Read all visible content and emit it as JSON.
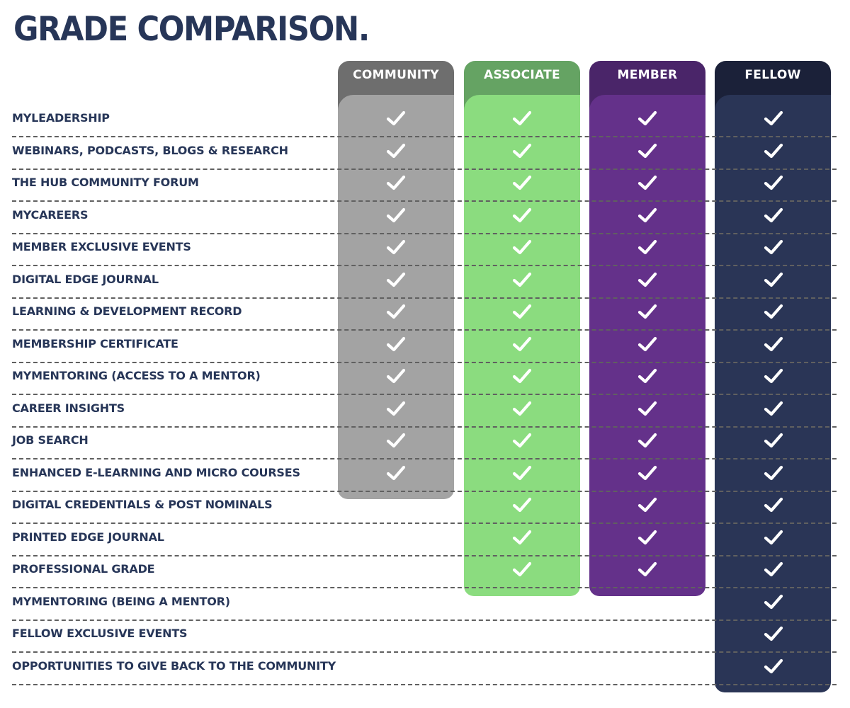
{
  "title": "GRADE COMPARISON.",
  "grades": [
    {
      "key": "community",
      "label": "COMMUNITY",
      "tab_color": "#6e6e6e",
      "body_color": "#a3a3a3",
      "feature_count": 12
    },
    {
      "key": "associate",
      "label": "ASSOCIATE",
      "tab_color": "#65a363",
      "body_color": "#8bdc7f",
      "feature_count": 15
    },
    {
      "key": "member",
      "label": "MEMBER",
      "tab_color": "#4a2569",
      "body_color": "#64318a",
      "feature_count": 15
    },
    {
      "key": "fellow",
      "label": "FELLOW",
      "tab_color": "#1b2139",
      "body_color": "#2a3556",
      "feature_count": 18
    }
  ],
  "check_icon": "checkmark-icon",
  "features": [
    {
      "label": "MYLEADERSHIP",
      "included": [
        true,
        true,
        true,
        true
      ]
    },
    {
      "label": "WEBINARS, PODCASTS, BLOGS & RESEARCH",
      "included": [
        true,
        true,
        true,
        true
      ]
    },
    {
      "label": "THE HUB COMMUNITY FORUM",
      "included": [
        true,
        true,
        true,
        true
      ]
    },
    {
      "label": "MYCAREERS",
      "included": [
        true,
        true,
        true,
        true
      ]
    },
    {
      "label": "MEMBER EXCLUSIVE EVENTS",
      "included": [
        true,
        true,
        true,
        true
      ]
    },
    {
      "label": "DIGITAL EDGE JOURNAL",
      "included": [
        true,
        true,
        true,
        true
      ]
    },
    {
      "label": "LEARNING & DEVELOPMENT RECORD",
      "included": [
        true,
        true,
        true,
        true
      ]
    },
    {
      "label": "MEMBERSHIP CERTIFICATE",
      "included": [
        true,
        true,
        true,
        true
      ]
    },
    {
      "label": "MYMENTORING (ACCESS TO A MENTOR)",
      "included": [
        true,
        true,
        true,
        true
      ]
    },
    {
      "label": "CAREER INSIGHTS",
      "included": [
        true,
        true,
        true,
        true
      ]
    },
    {
      "label": "JOB SEARCH",
      "included": [
        true,
        true,
        true,
        true
      ]
    },
    {
      "label": "ENHANCED E-LEARNING AND MICRO COURSES",
      "included": [
        true,
        true,
        true,
        true
      ]
    },
    {
      "label": "DIGITAL CREDENTIALS & POST NOMINALS",
      "included": [
        false,
        true,
        true,
        true
      ]
    },
    {
      "label": "PRINTED EDGE JOURNAL",
      "included": [
        false,
        true,
        true,
        true
      ]
    },
    {
      "label": "PROFESSIONAL GRADE",
      "included": [
        false,
        true,
        true,
        true
      ]
    },
    {
      "label": "MYMENTORING (BEING A MENTOR)",
      "included": [
        false,
        false,
        false,
        true
      ]
    },
    {
      "label": "FELLOW EXCLUSIVE EVENTS",
      "included": [
        false,
        false,
        false,
        true
      ]
    },
    {
      "label": "OPPORTUNITIES TO GIVE BACK TO THE COMMUNITY",
      "included": [
        false,
        false,
        false,
        true
      ]
    }
  ]
}
